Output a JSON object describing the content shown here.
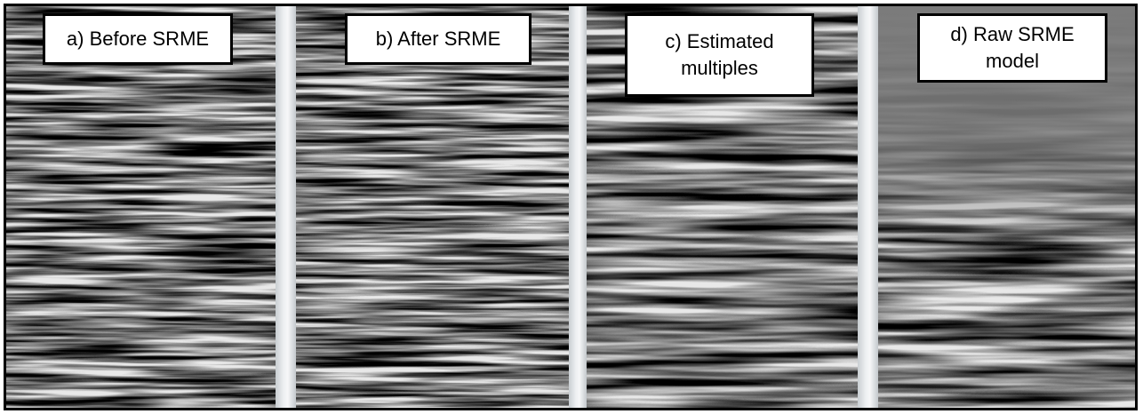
{
  "panels": [
    {
      "label": [
        "a) Before SRME"
      ]
    },
    {
      "label": [
        "b) After SRME"
      ]
    },
    {
      "label": [
        "c) Estimated",
        "multiples"
      ]
    },
    {
      "label": [
        "d) Raw SRME",
        "model"
      ]
    }
  ]
}
